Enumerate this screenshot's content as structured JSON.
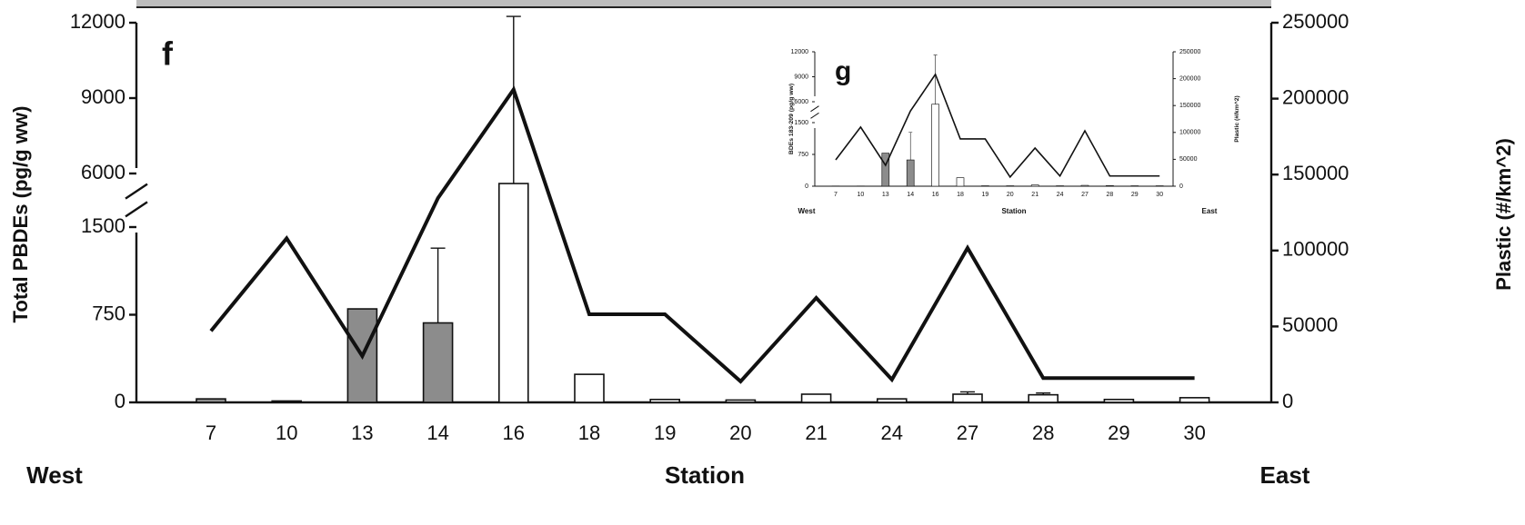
{
  "chart_data": [
    {
      "type": "bar-line",
      "title": "f",
      "xlabel": "Station",
      "x_left_label": "West",
      "x_right_label": "East",
      "ylabel": "Total PBDEs (pg/g ww)",
      "y2label": "Plastic (#/km^2)",
      "categories": [
        "7",
        "10",
        "13",
        "14",
        "16",
        "18",
        "19",
        "20",
        "21",
        "24",
        "27",
        "28",
        "29",
        "30"
      ],
      "series": [
        {
          "name": "Total PBDEs",
          "type": "bar",
          "axis": "y",
          "colors": [
            "#8c8c8c",
            "#8c8c8c",
            "#8c8c8c",
            "#8c8c8c",
            "#ffffff",
            "#ffffff",
            "#ffffff",
            "#ffffff",
            "#ffffff",
            "#ffffff",
            "#ffffff",
            "#ffffff",
            "#ffffff",
            "#ffffff"
          ],
          "values": [
            30,
            12,
            800,
            680,
            5600,
            240,
            25,
            20,
            70,
            30,
            70,
            65,
            25,
            40
          ],
          "errors": [
            null,
            null,
            null,
            640,
            6650,
            null,
            null,
            null,
            null,
            null,
            20,
            15,
            null,
            null
          ]
        },
        {
          "name": "Plastic",
          "type": "line",
          "axis": "y2",
          "color": "#111111",
          "values": [
            47000,
            108000,
            30500,
            134500,
            206000,
            58000,
            58000,
            13800,
            68800,
            15000,
            101700,
            16000,
            16000,
            16000
          ]
        }
      ],
      "ylim": [
        0,
        12000
      ],
      "ybreak": [
        1500,
        6000
      ],
      "yticks": [
        0,
        750,
        1500,
        6000,
        9000,
        12000
      ],
      "y2lim": [
        0,
        250000
      ],
      "y2ticks": [
        0,
        50000,
        100000,
        150000,
        200000,
        250000
      ]
    },
    {
      "type": "bar-line",
      "title": "g",
      "xlabel": "Station",
      "x_left_label": "West",
      "x_right_label": "East",
      "ylabel": "BDEs 183-209 (pg/g ww)",
      "y2label": "Plastic (#/km^2)",
      "categories": [
        "7",
        "10",
        "13",
        "14",
        "16",
        "18",
        "19",
        "20",
        "21",
        "24",
        "27",
        "28",
        "29",
        "30"
      ],
      "series": [
        {
          "name": "BDEs 183-209",
          "type": "bar",
          "axis": "y",
          "colors": [
            "#8c8c8c",
            "#8c8c8c",
            "#8c8c8c",
            "#8c8c8c",
            "#ffffff",
            "#ffffff",
            "#ffffff",
            "#ffffff",
            "#ffffff",
            "#ffffff",
            "#ffffff",
            "#ffffff",
            "#ffffff",
            "#ffffff"
          ],
          "values": [
            5,
            5,
            780,
            620,
            5700,
            200,
            10,
            10,
            30,
            10,
            20,
            15,
            10,
            10
          ],
          "errors": [
            null,
            null,
            null,
            650,
            5900,
            null,
            null,
            null,
            null,
            null,
            null,
            null,
            null,
            null
          ]
        },
        {
          "name": "Plastic",
          "type": "line",
          "axis": "y2",
          "color": "#111111",
          "values": [
            49000,
            110000,
            39000,
            140000,
            208000,
            88000,
            88000,
            17000,
            71000,
            19000,
            103000,
            19000,
            19000,
            19000
          ]
        }
      ],
      "ylim": [
        0,
        12000
      ],
      "ybreak": [
        1500,
        6000
      ],
      "yticks": [
        0,
        750,
        1500,
        6000,
        9000,
        12000
      ],
      "y2lim": [
        0,
        250000
      ],
      "y2ticks": [
        0,
        50000,
        100000,
        150000,
        200000,
        250000
      ]
    }
  ]
}
